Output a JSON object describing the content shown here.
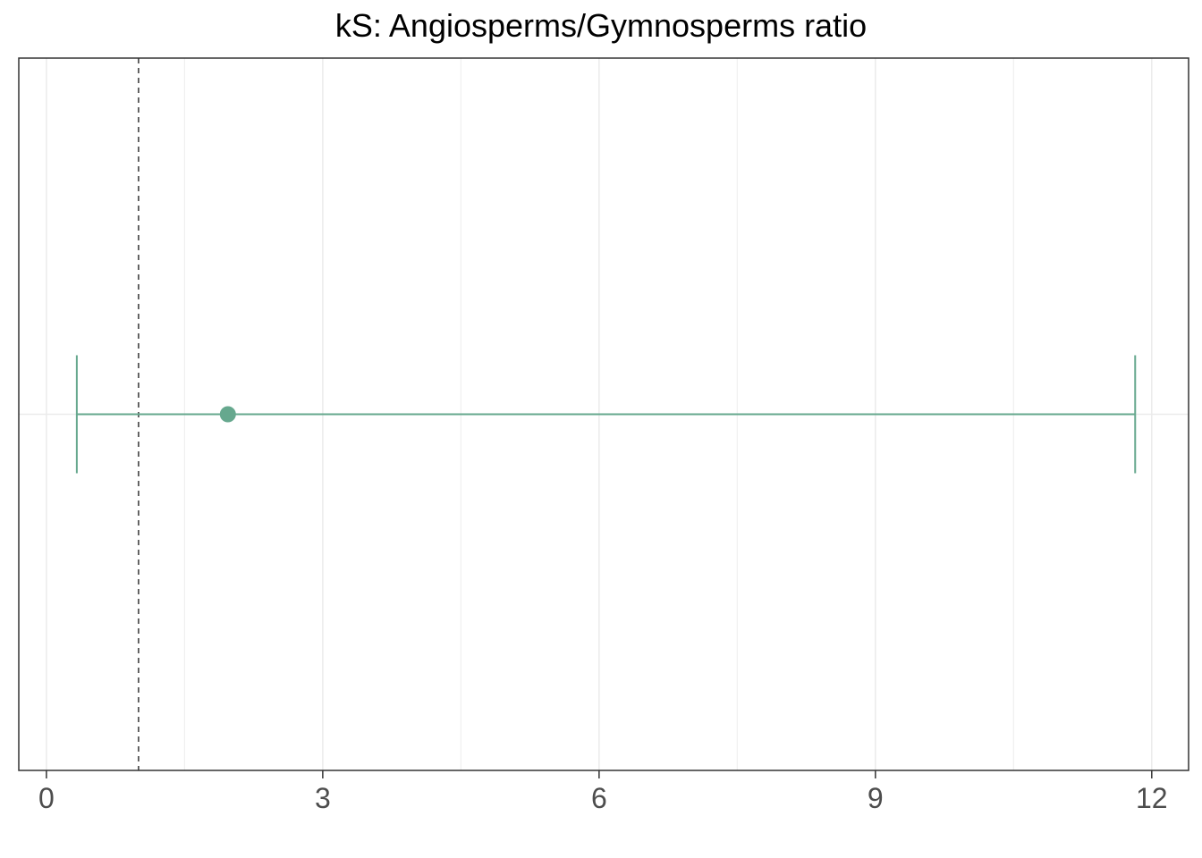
{
  "chart_data": {
    "type": "errorbar",
    "title": "kS: Angiosperms/Gymnosperms ratio",
    "xlabel": "",
    "ylabel": "",
    "xlim": [
      -0.3,
      12.4
    ],
    "x_ticks": [
      0,
      3,
      6,
      9,
      12
    ],
    "x_tick_labels": [
      "0",
      "3",
      "6",
      "9",
      "12"
    ],
    "grid": true,
    "legend": "none",
    "reference_line": {
      "x": 1,
      "style": "dashed",
      "color": "#555555"
    },
    "points": [
      {
        "estimate": 1.97,
        "lower": 0.33,
        "upper": 11.82,
        "color": "#66a88e"
      }
    ]
  }
}
